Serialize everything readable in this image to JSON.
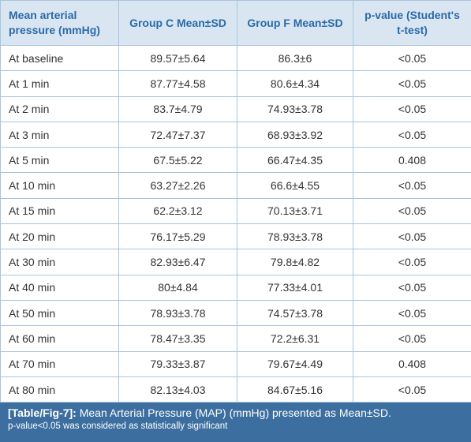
{
  "table": {
    "header": [
      "Mean arterial pressure (mmHg)",
      "Group C Mean±SD",
      "Group F Mean±SD",
      "p-value (Student's t-test)"
    ],
    "rows": [
      [
        "At baseline",
        "89.57±5.64",
        "86.3±6",
        "<0.05"
      ],
      [
        "At 1 min",
        "87.77±4.58",
        "80.6±4.34",
        "<0.05"
      ],
      [
        "At 2 min",
        "83.7±4.79",
        "74.93±3.78",
        "<0.05"
      ],
      [
        "At 3 min",
        "72.47±7.37",
        "68.93±3.92",
        "<0.05"
      ],
      [
        "At 5 min",
        "67.5±5.22",
        "66.47±4.35",
        "0.408"
      ],
      [
        "At 10 min",
        "63.27±2.26",
        "66.6±4.55",
        "<0.05"
      ],
      [
        "At 15 min",
        "62.2±3.12",
        "70.13±3.71",
        "<0.05"
      ],
      [
        "At 20 min",
        "76.17±5.29",
        "78.93±3.78",
        "<0.05"
      ],
      [
        "At 30 min",
        "82.93±6.47",
        "79.8±4.82",
        "<0.05"
      ],
      [
        "At 40 min",
        "80±4.84",
        "77.33±4.01",
        "<0.05"
      ],
      [
        "At 50 min",
        "78.93±3.78",
        "74.57±3.78",
        "<0.05"
      ],
      [
        "At 60 min",
        "78.47±3.35",
        "72.2±6.31",
        "<0.05"
      ],
      [
        "At 70 min",
        "79.33±3.87",
        "79.67±4.49",
        "0.408"
      ],
      [
        "At 80 min",
        "82.13±4.03",
        "84.67±5.16",
        "<0.05"
      ]
    ]
  },
  "caption": {
    "label": "[Table/Fig-7]:",
    "text": "Mean Arterial Pressure (MAP) (mmHg) presented as Mean±SD.",
    "note": "p-value<0.05 was considered as statistically significant"
  }
}
